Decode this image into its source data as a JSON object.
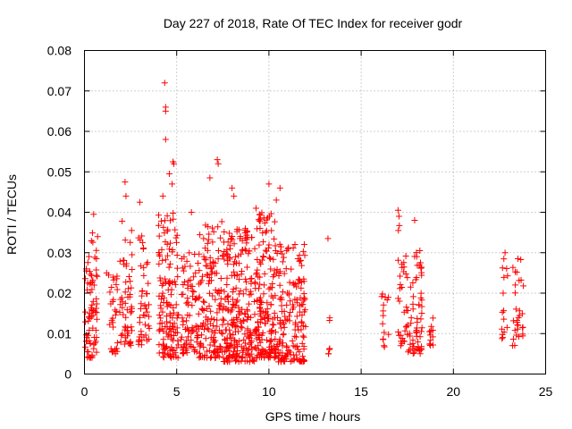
{
  "chart_data": {
    "type": "scatter",
    "title": "Day 227 of 2018, Rate Of TEC Index for receiver godr",
    "xlabel": "GPS time / hours",
    "ylabel": "ROTI / TECUs",
    "xlim": [
      0,
      25
    ],
    "ylim": [
      0,
      0.08
    ],
    "xticks": [
      0,
      5,
      10,
      15,
      20,
      25
    ],
    "xtick_labels": [
      "0",
      "5",
      "10",
      "15",
      "20",
      "25"
    ],
    "yticks": [
      0,
      0.01,
      0.02,
      0.03,
      0.04,
      0.05,
      0.06,
      0.07,
      0.08
    ],
    "ytick_labels": [
      "0",
      "0.01",
      "0.02",
      "0.03",
      "0.04",
      "0.05",
      "0.06",
      "0.07",
      "0.08"
    ],
    "grid": true,
    "marker": "+",
    "color": "#ff0000",
    "series": [
      {
        "name": "ROTI",
        "clusters": [
          {
            "x": [
              0.0,
              0.7
            ],
            "y": [
              0.004,
              0.03
            ],
            "n": 60
          },
          {
            "x": [
              0.35,
              0.75
            ],
            "y": [
              0.015,
              0.039
            ],
            "n": 15
          },
          {
            "x": [
              1.3,
              1.8
            ],
            "y": [
              0.005,
              0.025
            ],
            "n": 30
          },
          {
            "x": [
              1.9,
              2.6
            ],
            "y": [
              0.007,
              0.04
            ],
            "n": 55
          },
          {
            "x": [
              2.9,
              3.6
            ],
            "y": [
              0.007,
              0.035
            ],
            "n": 45
          },
          {
            "x": [
              4.0,
              5.1
            ],
            "y": [
              0.004,
              0.04
            ],
            "n": 140
          },
          {
            "x": [
              5.2,
              6.2
            ],
            "y": [
              0.005,
              0.03
            ],
            "n": 80
          },
          {
            "x": [
              6.2,
              7.5
            ],
            "y": [
              0.004,
              0.038
            ],
            "n": 140
          },
          {
            "x": [
              7.5,
              9.4
            ],
            "y": [
              0.003,
              0.036
            ],
            "n": 260
          },
          {
            "x": [
              9.4,
              10.4
            ],
            "y": [
              0.004,
              0.04
            ],
            "n": 150
          },
          {
            "x": [
              10.4,
              12.0
            ],
            "y": [
              0.003,
              0.033
            ],
            "n": 170
          },
          {
            "x": [
              13.2,
              13.3
            ],
            "y": [
              0.005,
              0.023
            ],
            "n": 6
          },
          {
            "x": [
              16.1,
              16.5
            ],
            "y": [
              0.006,
              0.02
            ],
            "n": 15
          },
          {
            "x": [
              17.0,
              17.4
            ],
            "y": [
              0.007,
              0.04
            ],
            "n": 25
          },
          {
            "x": [
              17.4,
              18.3
            ],
            "y": [
              0.005,
              0.033
            ],
            "n": 70
          },
          {
            "x": [
              18.7,
              18.9
            ],
            "y": [
              0.007,
              0.014
            ],
            "n": 12
          },
          {
            "x": [
              22.6,
              23.0
            ],
            "y": [
              0.008,
              0.03
            ],
            "n": 15
          },
          {
            "x": [
              23.2,
              23.8
            ],
            "y": [
              0.007,
              0.029
            ],
            "n": 30
          }
        ],
        "peaks": [
          [
            4.35,
            0.072
          ],
          [
            4.4,
            0.066
          ],
          [
            4.4,
            0.065
          ],
          [
            4.4,
            0.058
          ],
          [
            4.8,
            0.0525
          ],
          [
            4.85,
            0.052
          ],
          [
            4.6,
            0.0495
          ],
          [
            4.75,
            0.047
          ],
          [
            4.25,
            0.044
          ],
          [
            7.2,
            0.053
          ],
          [
            7.25,
            0.052
          ],
          [
            6.8,
            0.0485
          ],
          [
            8.0,
            0.046
          ],
          [
            8.1,
            0.044
          ],
          [
            10.0,
            0.047
          ],
          [
            10.6,
            0.046
          ],
          [
            10.4,
            0.043
          ],
          [
            2.2,
            0.0475
          ],
          [
            2.25,
            0.044
          ],
          [
            3.0,
            0.0425
          ],
          [
            13.2,
            0.0335
          ],
          [
            17.0,
            0.0405
          ],
          [
            17.05,
            0.039
          ],
          [
            17.9,
            0.038
          ],
          [
            22.8,
            0.03
          ],
          [
            23.5,
            0.0285
          ],
          [
            0.1,
            0.026
          ],
          [
            0.5,
            0.0395
          ],
          [
            1.2,
            0.025
          ],
          [
            9.3,
            0.041
          ],
          [
            5.8,
            0.04
          ]
        ]
      }
    ]
  }
}
